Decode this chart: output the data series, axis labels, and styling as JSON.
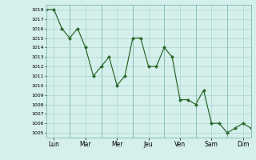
{
  "x_values": [
    0,
    0.5,
    1,
    1.5,
    2,
    2.5,
    3,
    3.5,
    4,
    4.5,
    5,
    5.5,
    6,
    6.5,
    7,
    7.5,
    8,
    8.5,
    9,
    9.5,
    10,
    10.5,
    11,
    11.5,
    12,
    12.5,
    13
  ],
  "y_values": [
    1018,
    1018,
    1016,
    1015,
    1016,
    1014,
    1011,
    1012,
    1013,
    1010,
    1011,
    1015,
    1015,
    1012,
    1012,
    1014,
    1013,
    1008.5,
    1008.5,
    1008,
    1009.5,
    1006,
    1006,
    1005,
    1005.5,
    1006,
    1005.5
  ],
  "x_tick_positions": [
    0.5,
    2.5,
    4.5,
    6.5,
    8.5,
    10.5,
    12.5
  ],
  "x_tick_labels": [
    "Lun",
    "Mar",
    "Mer",
    "Jeu",
    "Ven",
    "Sam",
    "Dim"
  ],
  "y_min": 1005,
  "y_max": 1018,
  "line_color": "#2d6a2d",
  "marker_color": "#2d6a2d",
  "bg_color": "#d5f0ec",
  "grid_color": "#aad4cc",
  "fig_bg": "#d5f0ec",
  "vline_color": "#88bbb5",
  "spine_color": "#88bbb5"
}
